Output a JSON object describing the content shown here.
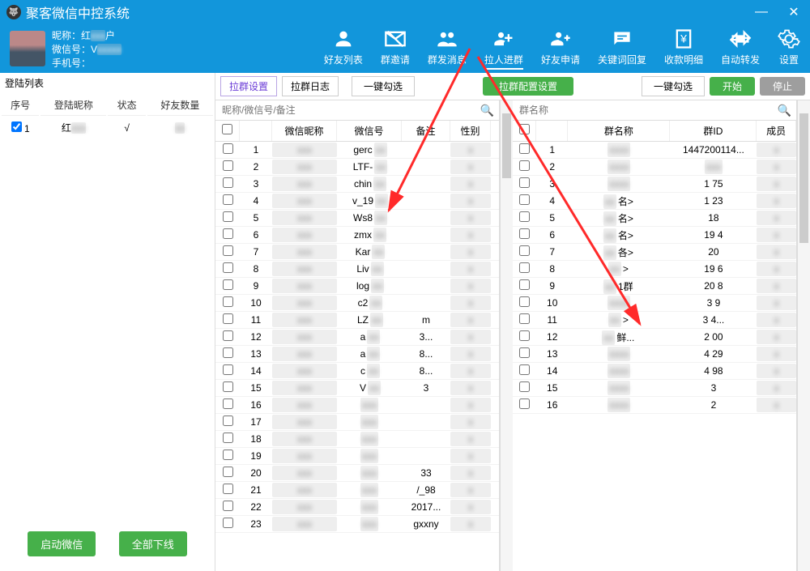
{
  "app": {
    "title": "聚客微信中控系统"
  },
  "user": {
    "nick_label": "昵称：红",
    "wx_label": "微信号：V",
    "phone_label": "手机号：",
    "nick_suffix": "户"
  },
  "nav": [
    {
      "key": "friends",
      "label": "好友列表"
    },
    {
      "key": "groupinvite",
      "label": "群邀请"
    },
    {
      "key": "groupsend",
      "label": "群发消息"
    },
    {
      "key": "pullgroup",
      "label": "拉人进群",
      "active": true
    },
    {
      "key": "friendreq",
      "label": "好友申请"
    },
    {
      "key": "keyword",
      "label": "关键词回复"
    },
    {
      "key": "payment",
      "label": "收款明细"
    },
    {
      "key": "autofwd",
      "label": "自动转发"
    },
    {
      "key": "settings",
      "label": "设置"
    }
  ],
  "sidebar": {
    "title": "登陆列表",
    "cols": [
      "序号",
      "登陆昵称",
      "状态",
      "好友数量"
    ],
    "rows": [
      {
        "idx": "1",
        "nick": "红",
        "state": "√",
        "friends": ""
      }
    ],
    "btn_start": "启动微信",
    "btn_offline": "全部下线"
  },
  "tabs": {
    "t1": "拉群设置",
    "t2": "拉群日志",
    "btn_check": "一键勾选",
    "btn_config": "拉群配置设置",
    "btn_check2": "一键勾选",
    "btn_start": "开始",
    "btn_stop": "停止"
  },
  "left": {
    "placeholder": "昵称/微信号/备注",
    "cols": [
      "微信昵称",
      "微信号",
      "备注",
      "性别"
    ],
    "rows": [
      {
        "i": "1",
        "wx": "gerc"
      },
      {
        "i": "2",
        "wx": "LTF-"
      },
      {
        "i": "3",
        "wx": "chin"
      },
      {
        "i": "4",
        "wx": "v_19"
      },
      {
        "i": "5",
        "wx": "Ws8"
      },
      {
        "i": "6",
        "wx": "zmx"
      },
      {
        "i": "7",
        "wx": "Kar"
      },
      {
        "i": "8",
        "wx": "Liv"
      },
      {
        "i": "9",
        "wx": "log"
      },
      {
        "i": "10",
        "wx": "c2"
      },
      {
        "i": "11",
        "wx": "LZ",
        "note": "m"
      },
      {
        "i": "12",
        "wx": "a",
        "note": "3..."
      },
      {
        "i": "13",
        "wx": "a",
        "note": "8..."
      },
      {
        "i": "14",
        "wx": "c",
        "note": "8..."
      },
      {
        "i": "15",
        "wx": "V",
        "note": "3"
      },
      {
        "i": "16"
      },
      {
        "i": "17"
      },
      {
        "i": "18"
      },
      {
        "i": "19"
      },
      {
        "i": "20",
        "note": "33"
      },
      {
        "i": "21",
        "note": "/_98"
      },
      {
        "i": "22",
        "note": "2017..."
      },
      {
        "i": "23",
        "note": "gxxny"
      }
    ]
  },
  "right": {
    "placeholder": "群名称",
    "cols": [
      "群名称",
      "群ID",
      "成员"
    ],
    "rows": [
      {
        "i": "1",
        "id": "1447200114..."
      },
      {
        "i": "2"
      },
      {
        "i": "3",
        "id": "1        75"
      },
      {
        "i": "4",
        "name": "名>",
        "id": "1        23"
      },
      {
        "i": "5",
        "name": "名>",
        "id": "18"
      },
      {
        "i": "6",
        "name": "名>",
        "id": "19        4"
      },
      {
        "i": "7",
        "name": "各>",
        "id": "20"
      },
      {
        "i": "8",
        "name": ">",
        "id": "19        6"
      },
      {
        "i": "9",
        "name": "1群",
        "id": "20        8"
      },
      {
        "i": "10",
        "id": "3        9"
      },
      {
        "i": "11",
        "name": ">",
        "id": "3        4..."
      },
      {
        "i": "12",
        "name": "鲜...",
        "id": "2        00"
      },
      {
        "i": "13",
        "id": "4        29"
      },
      {
        "i": "14",
        "id": "4        98"
      },
      {
        "i": "15",
        "id": "3"
      },
      {
        "i": "16",
        "id": "2"
      }
    ]
  },
  "colors": {
    "primary": "#1296db",
    "green": "#46b04a",
    "gray": "#9e9e9e",
    "active_tab": "#6a3bd6"
  }
}
